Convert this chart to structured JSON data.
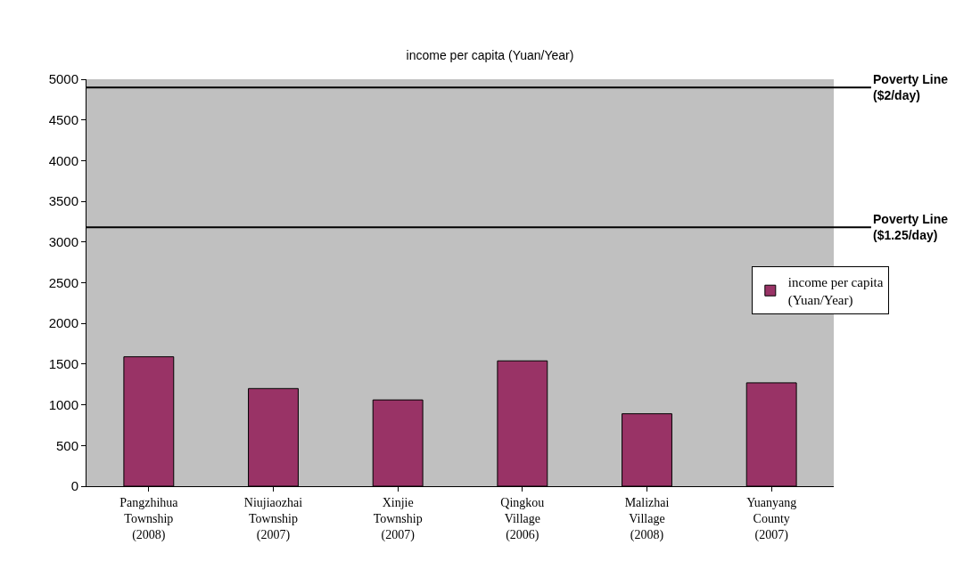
{
  "chart_data": {
    "type": "bar",
    "title": "income per capita (Yuan/Year)",
    "categories": [
      "Pangzhihua\nTownship\n(2008)",
      "Niujiaozhai\nTownship\n(2007)",
      "Xinjie\nTownship\n(2007)",
      "Qingkou\nVillage\n(2006)",
      "Malizhai\nVillage\n(2008)",
      "Yuanyang\nCounty\n(2007)"
    ],
    "series": [
      {
        "name": "income per capita\n(Yuan/Year)",
        "color": "#993366",
        "values": [
          1590,
          1200,
          1060,
          1540,
          890,
          1270
        ]
      }
    ],
    "ylim": [
      0,
      5000
    ],
    "yticks": [
      0,
      500,
      1000,
      1500,
      2000,
      2500,
      3000,
      3500,
      4000,
      4500,
      5000
    ],
    "ref_lines": [
      {
        "axis": "y",
        "value": 4900,
        "label": "Poverty Line\n($2/day)",
        "color": "#000000"
      },
      {
        "axis": "y",
        "value": 3180,
        "label": "Poverty Line\n($1.25/day)",
        "color": "#000000"
      }
    ],
    "grid": false,
    "legend": "right"
  }
}
